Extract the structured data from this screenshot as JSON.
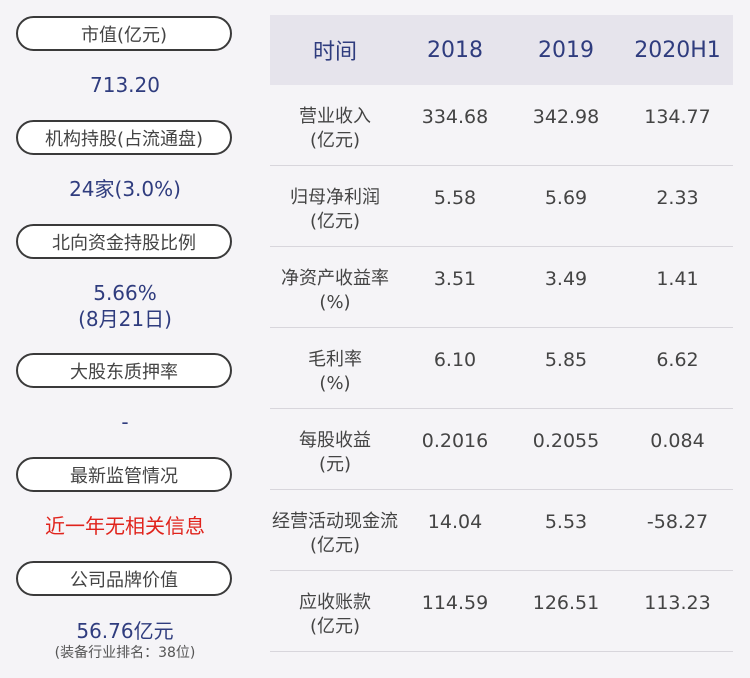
{
  "left": {
    "market_value": {
      "label": "市值(亿元)",
      "value": "713.20"
    },
    "institution": {
      "label": "机构持股(占流通盘)",
      "value": "24家(3.0%)"
    },
    "northbound": {
      "label": "北向资金持股比例",
      "value": "5.66%",
      "value2": "(8月21日)"
    },
    "pledge": {
      "label": "大股东质押率",
      "value": "-"
    },
    "regulation": {
      "label": "最新监管情况",
      "value": "近一年无相关信息"
    },
    "brand": {
      "label": "公司品牌价值",
      "value": "56.76亿元",
      "note": "(装备行业排名：38位)"
    }
  },
  "table": {
    "headers": [
      "时间",
      "2018",
      "2019",
      "2020H1"
    ],
    "rows": [
      {
        "label": "营业收入",
        "unit": "(亿元)",
        "values": [
          "334.68",
          "342.98",
          "134.77"
        ]
      },
      {
        "label": "归母净利润",
        "unit": "(亿元)",
        "values": [
          "5.58",
          "5.69",
          "2.33"
        ]
      },
      {
        "label": "净资产收益率",
        "unit": "(%)",
        "values": [
          "3.51",
          "3.49",
          "1.41"
        ]
      },
      {
        "label": "毛利率",
        "unit": "(%)",
        "values": [
          "6.10",
          "5.85",
          "6.62"
        ]
      },
      {
        "label": "每股收益",
        "unit": "(元)",
        "values": [
          "0.2016",
          "0.2055",
          "0.084"
        ]
      },
      {
        "label": "经营活动现金流",
        "unit": "(亿元)",
        "values": [
          "14.04",
          "5.53",
          "-58.27"
        ]
      },
      {
        "label": "应收账款",
        "unit": "(亿元)",
        "values": [
          "114.59",
          "126.51",
          "113.23"
        ]
      }
    ]
  }
}
